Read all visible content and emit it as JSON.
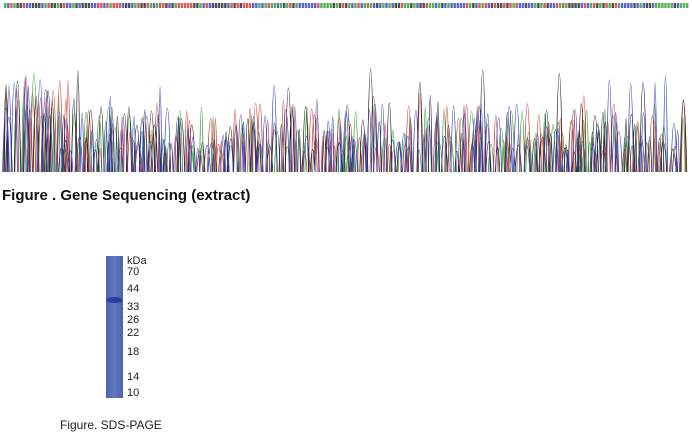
{
  "caption_sequencing": "Figure . Gene Sequencing (extract)",
  "gel": {
    "unit": "kDa",
    "markers": [
      70,
      44,
      33,
      26,
      22,
      18,
      14,
      10
    ]
  },
  "caption_gel": "Figure. SDS-PAGE"
}
